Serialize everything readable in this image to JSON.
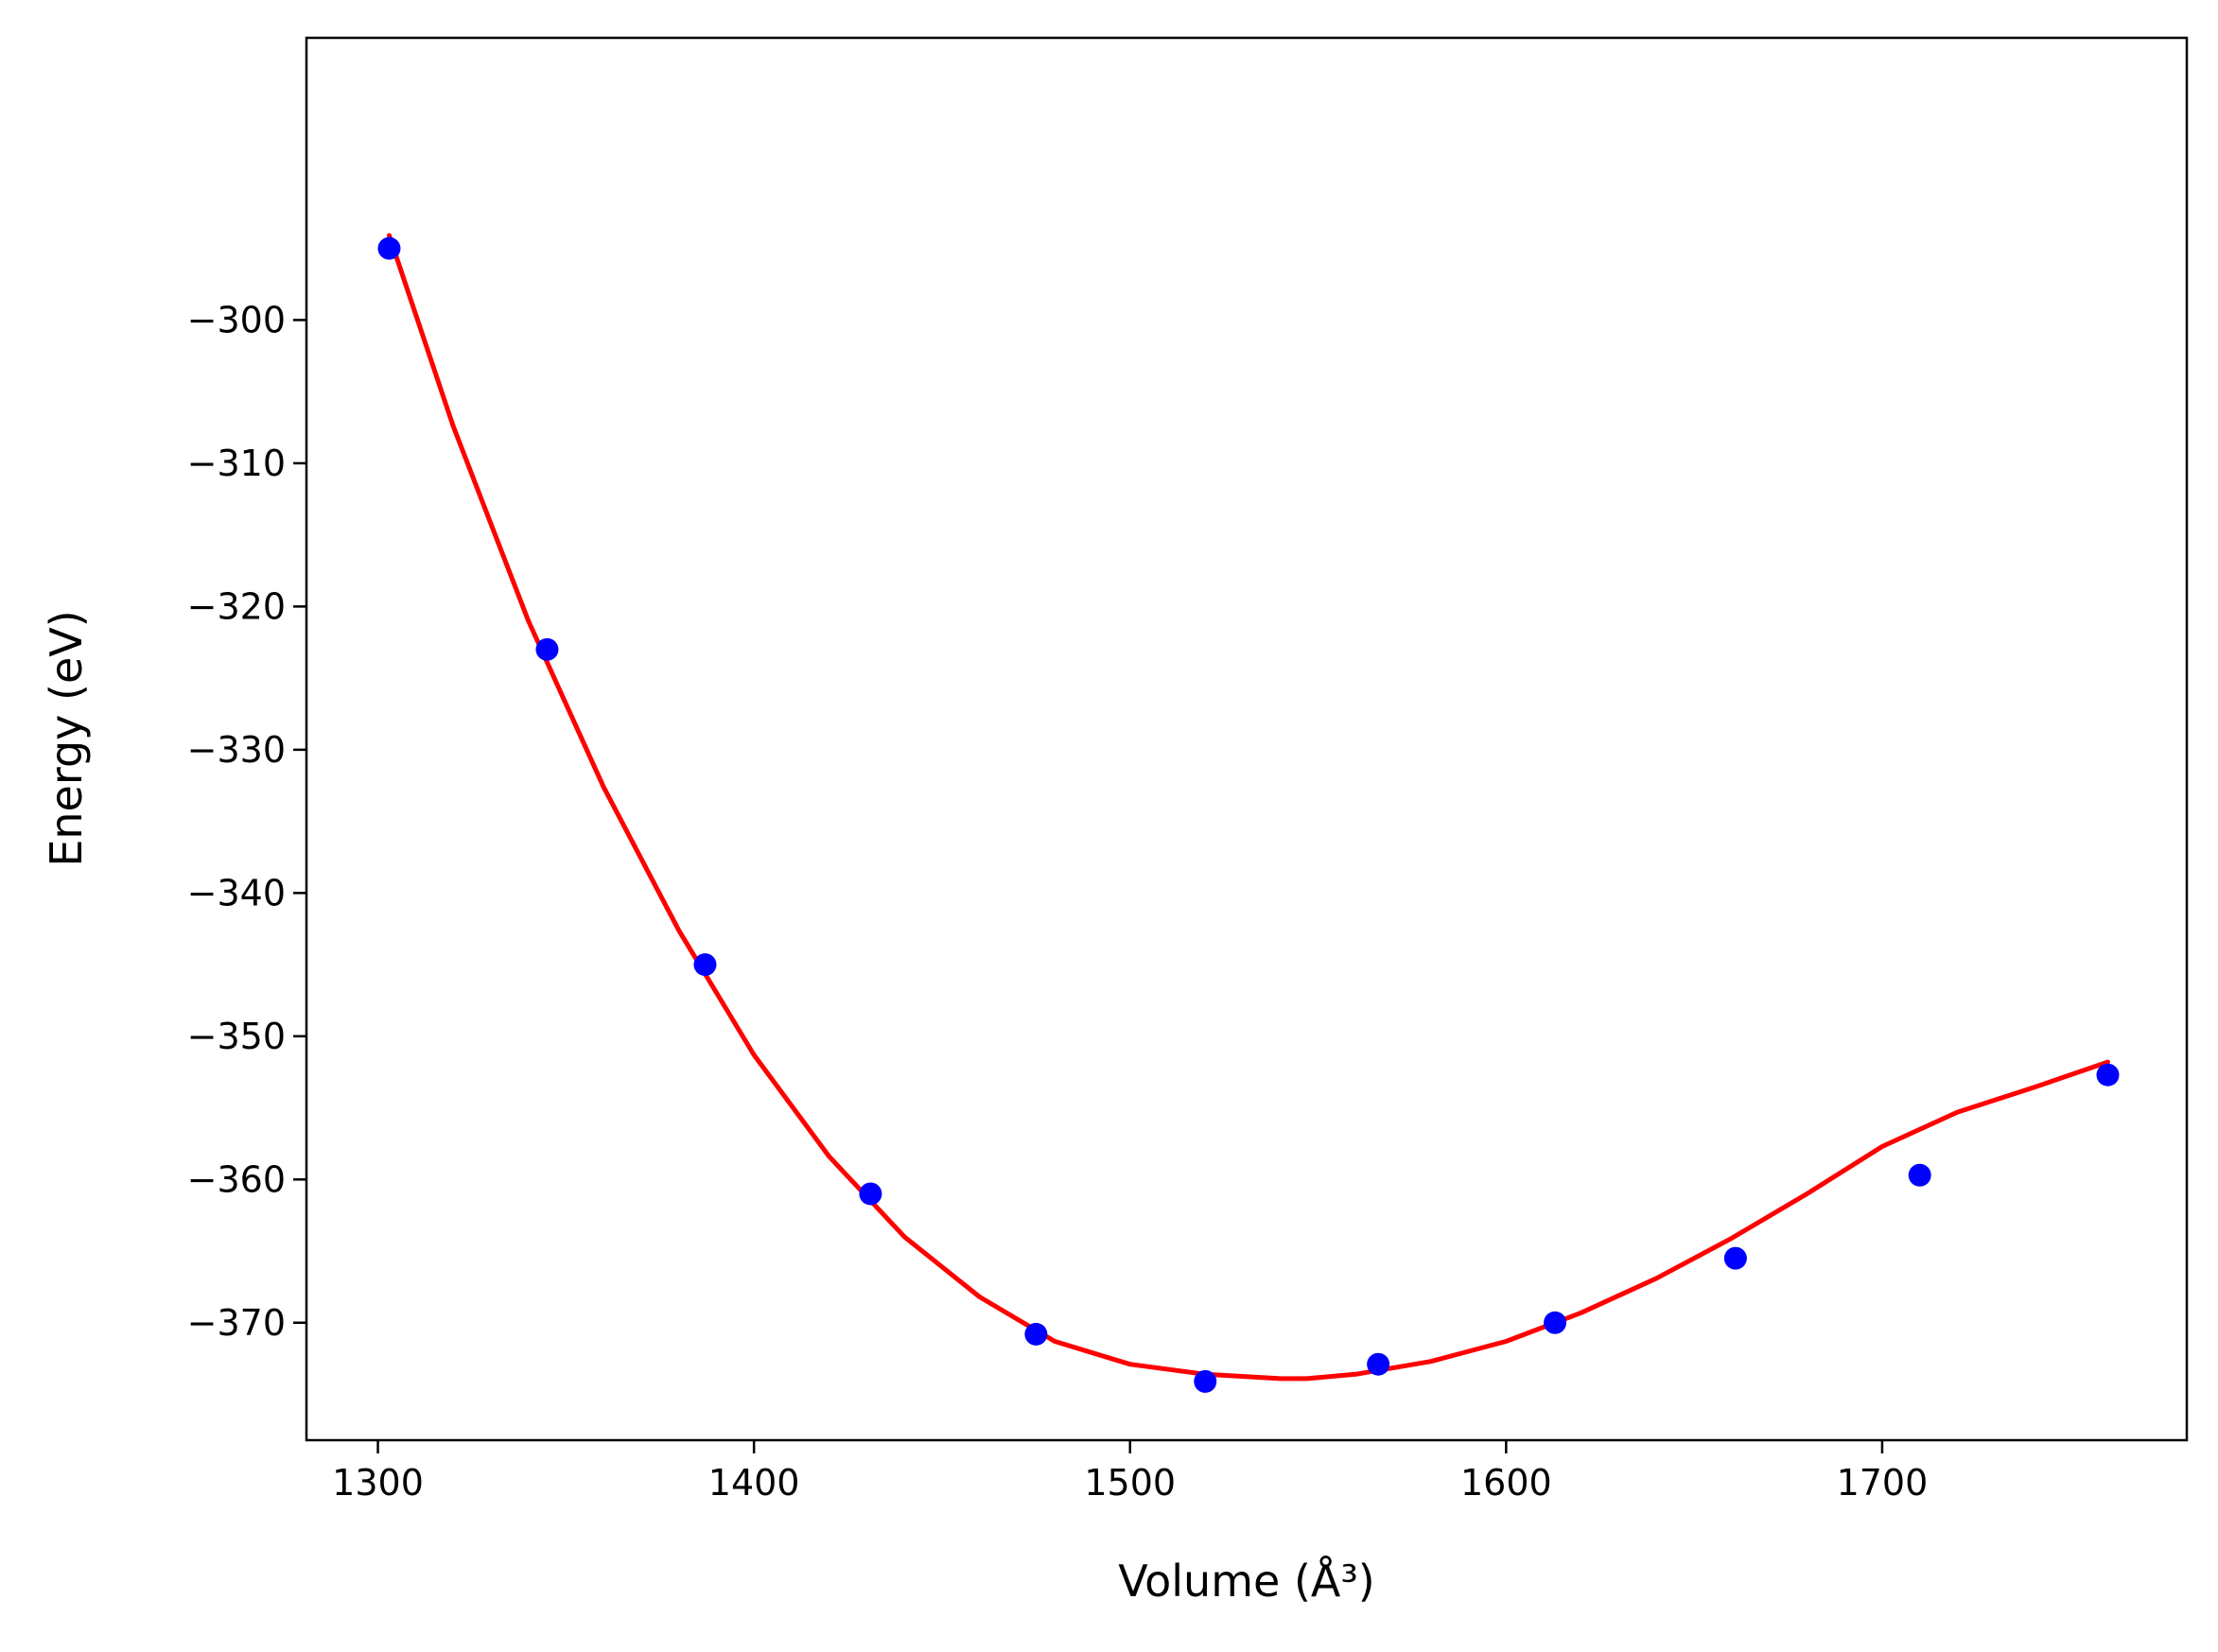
{
  "chart_data": {
    "type": "scatter",
    "xlabel": "Volume (Å³)",
    "ylabel": "Energy (eV)",
    "xlim": [
      1281,
      1781
    ],
    "ylim": [
      -378.2,
      -280.3
    ],
    "xticks": [
      1300,
      1400,
      1500,
      1600,
      1700
    ],
    "xtick_labels": [
      "1300",
      "1400",
      "1500",
      "1600",
      "1700"
    ],
    "yticks": [
      -300,
      -310,
      -320,
      -330,
      -340,
      -350,
      -360,
      -370
    ],
    "ytick_labels": [
      "−300",
      "−310",
      "−320",
      "−330",
      "−340",
      "−350",
      "−360",
      "−370"
    ],
    "grid": false,
    "series": [
      {
        "kind": "points",
        "color": "#0000ff",
        "x": [
          1303,
          1345,
          1387,
          1431,
          1475,
          1520,
          1566,
          1613,
          1661,
          1710,
          1760
        ],
        "y": [
          -295.0,
          -323.0,
          -345.0,
          -361.0,
          -370.8,
          -374.1,
          -372.9,
          -370.0,
          -365.5,
          -359.7,
          -352.7
        ]
      },
      {
        "kind": "fit-line",
        "color": "#ff0000",
        "x": [
          1303,
          1320,
          1340,
          1360,
          1380,
          1400,
          1420,
          1440,
          1460,
          1480,
          1500,
          1520,
          1540,
          1547,
          1560,
          1580,
          1600,
          1620,
          1640,
          1660,
          1680,
          1700,
          1720,
          1740,
          1760
        ],
        "y": [
          -294.1,
          -307.4,
          -321.0,
          -332.6,
          -342.6,
          -351.3,
          -358.4,
          -364.0,
          -368.2,
          -371.3,
          -372.9,
          -373.6,
          -373.9,
          -373.9,
          -373.6,
          -372.7,
          -371.3,
          -369.3,
          -366.9,
          -364.1,
          -361.0,
          -357.7,
          -355.3,
          -353.6,
          -351.8
        ]
      }
    ]
  }
}
